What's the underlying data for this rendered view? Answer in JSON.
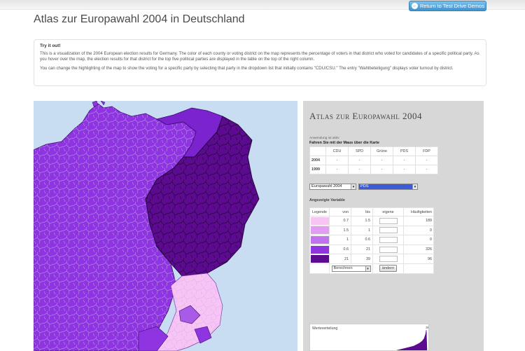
{
  "demo_button": {
    "label": "Return to Test Drive Demos",
    "icon": "arrow-left-icon"
  },
  "page_title": "Atlas zur Europawahl 2004 in Deutschland",
  "info": {
    "heading": "Try it out!",
    "para1": "This is a visualization of the 2004 European election results for Germany. The color of each county or voting district on the map represents the percentage of voters in that district who voted for candidates of a specific political party. As you hover over the map, the election results for that district for the top five political parties are displayed in the table on the top of the right column.",
    "para2": "You can change the highlighting of the map to show the voting for a specific party by selecting that party in the dropdown list that initially contains \"CDU/CSU.\" The entry \"Wahlbeteiligung\" displays voter turnout by district."
  },
  "panel": {
    "title": "Atlas zur Europawahl 2004",
    "hint_small": "Anwendung ist aktiv",
    "hint_bold": "Fahren Sie mit der Maus über die Karte",
    "results": {
      "parties": [
        "CDU",
        "SPD",
        "Grüne",
        "PDS",
        "FDP"
      ],
      "rows": [
        {
          "year": "2004",
          "values": [
            "-",
            "-",
            "-",
            "-",
            "-"
          ]
        },
        {
          "year": "1999",
          "values": [
            "-",
            "-",
            "-",
            "-",
            "-"
          ]
        }
      ]
    },
    "election_select": "Europawahl 2004",
    "party_select": "PDS",
    "variable_label": "Angezeigte Variable",
    "legend": {
      "headers": {
        "legend": "Legende",
        "from": "von",
        "to": "bis",
        "own": "eigene",
        "freq": "Häufigkeiten"
      },
      "rows": [
        {
          "color": "#f7c4f4",
          "from": "0.7",
          "to": "1.5",
          "freq": "189"
        },
        {
          "color": "#e39cf4",
          "from": "1.5",
          "to": "1",
          "freq": "0"
        },
        {
          "color": "#bf73ef",
          "from": "1",
          "to": "0.6",
          "freq": "0"
        },
        {
          "color": "#8e34e0",
          "from": "0.6",
          "to": "21",
          "freq": "326"
        },
        {
          "color": "#5c0a8f",
          "from": "21",
          "to": "39",
          "freq": "96"
        }
      ],
      "calc_select": "Berechnen",
      "change_button": "ändern"
    },
    "distribution": {
      "label": "Werteverteilung",
      "max": "39"
    }
  }
}
